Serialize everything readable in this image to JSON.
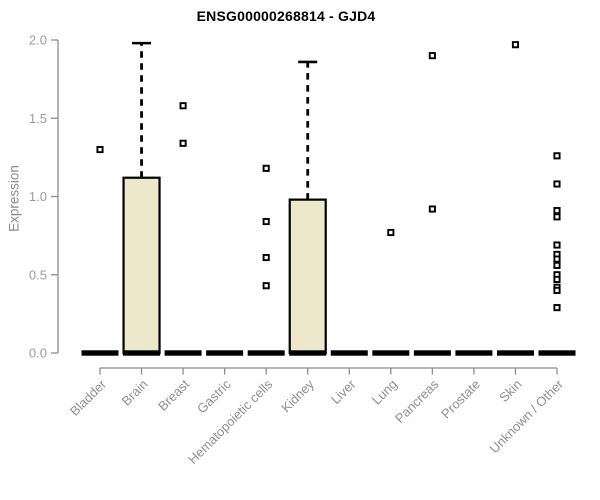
{
  "chart_data": {
    "type": "boxplot",
    "title": "ENSG00000268814 - GJD4",
    "ylabel": "Expression",
    "xlabel": "",
    "ylim": [
      0,
      2
    ],
    "ytick_labels": [
      "0.0",
      "0.5",
      "1.0",
      "1.5",
      "2.0"
    ],
    "grid": false,
    "legend": "none",
    "colors": {
      "box_fill": "#EDE7CB",
      "box_stroke": "#000000",
      "median": "#000000",
      "outlier_stroke": "#000000",
      "outlier_fill": "#FFFFFF",
      "axis_line": "#8C8C8C",
      "tick_label": "#9B9B9B",
      "category_label": "#8F8F8F",
      "title": "#000000"
    },
    "categories": [
      "Bladder",
      "Brain",
      "Breast",
      "Gastric",
      "Hematopoietic cells",
      "Kidney",
      "Liver",
      "Lung",
      "Pancreas",
      "Prostate",
      "Skin",
      "Unknown / Other"
    ],
    "series": [
      {
        "name": "Bladder",
        "q1": 0,
        "median": 0,
        "q3": 0,
        "whisker_low": 0,
        "whisker_high": 0,
        "outliers": [
          1.3
        ]
      },
      {
        "name": "Brain",
        "q1": 0,
        "median": 0,
        "q3": 1.12,
        "whisker_low": 0,
        "whisker_high": 1.98,
        "outliers": []
      },
      {
        "name": "Breast",
        "q1": 0,
        "median": 0,
        "q3": 0,
        "whisker_low": 0,
        "whisker_high": 0,
        "outliers": [
          1.58,
          1.34
        ]
      },
      {
        "name": "Gastric",
        "q1": 0,
        "median": 0,
        "q3": 0,
        "whisker_low": 0,
        "whisker_high": 0,
        "outliers": []
      },
      {
        "name": "Hematopoietic cells",
        "q1": 0,
        "median": 0,
        "q3": 0,
        "whisker_low": 0,
        "whisker_high": 0,
        "outliers": [
          1.18,
          0.84,
          0.61,
          0.43
        ]
      },
      {
        "name": "Kidney",
        "q1": 0,
        "median": 0,
        "q3": 0.98,
        "whisker_low": 0,
        "whisker_high": 1.86,
        "outliers": []
      },
      {
        "name": "Liver",
        "q1": 0,
        "median": 0,
        "q3": 0,
        "whisker_low": 0,
        "whisker_high": 0,
        "outliers": []
      },
      {
        "name": "Lung",
        "q1": 0,
        "median": 0,
        "q3": 0,
        "whisker_low": 0,
        "whisker_high": 0,
        "outliers": [
          0.77
        ]
      },
      {
        "name": "Pancreas",
        "q1": 0,
        "median": 0,
        "q3": 0,
        "whisker_low": 0,
        "whisker_high": 0,
        "outliers": [
          1.9,
          0.92
        ]
      },
      {
        "name": "Prostate",
        "q1": 0,
        "median": 0,
        "q3": 0,
        "whisker_low": 0,
        "whisker_high": 0,
        "outliers": []
      },
      {
        "name": "Skin",
        "q1": 0,
        "median": 0,
        "q3": 0,
        "whisker_low": 0,
        "whisker_high": 0,
        "outliers": [
          1.97
        ]
      },
      {
        "name": "Unknown / Other",
        "q1": 0,
        "median": 0,
        "q3": 0,
        "whisker_low": 0,
        "whisker_high": 0,
        "outliers": [
          1.26,
          1.08,
          0.91,
          0.87,
          0.69,
          0.63,
          0.6,
          0.56,
          0.5,
          0.47,
          0.42,
          0.4,
          0.29
        ]
      }
    ]
  }
}
